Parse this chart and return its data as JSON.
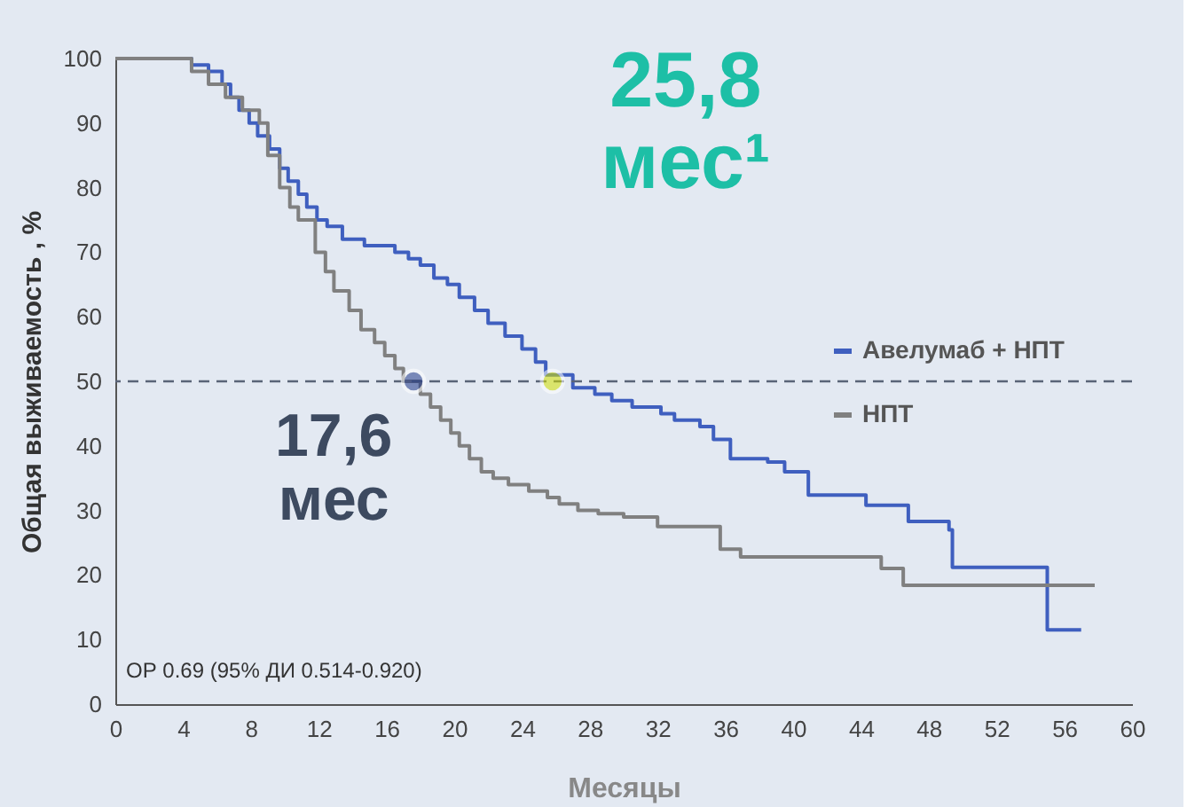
{
  "chart_data": {
    "type": "step",
    "xlabel": "Месяцы",
    "ylabel": "Общая выживаемость , %",
    "xlim": [
      0,
      60
    ],
    "xticks": [
      0,
      4,
      8,
      12,
      16,
      20,
      24,
      28,
      32,
      36,
      40,
      44,
      48,
      52,
      56,
      60
    ],
    "ylim": [
      0,
      100
    ],
    "yticks": [
      0,
      10,
      20,
      30,
      40,
      50,
      60,
      70,
      80,
      90,
      100
    ],
    "grid": false,
    "legend": "right",
    "marker": "none",
    "line_style": "solid",
    "series": [
      {
        "name": "Авелумаб + НПТ",
        "color": "#3f5fbf",
        "x": [
          0,
          4.5,
          5.5,
          6.3,
          6.8,
          7.3,
          7.9,
          8.4,
          9.1,
          9.7,
          10.2,
          10.8,
          11.3,
          11.9,
          12.5,
          13.4,
          14.7,
          16.5,
          17.3,
          18,
          18.8,
          19.6,
          20.3,
          21.2,
          22,
          23,
          24,
          24.8,
          25.4,
          27,
          28.3,
          29.3,
          30.5,
          32.2,
          33,
          34.5,
          35.3,
          36.3,
          38.5,
          39.5,
          40.9,
          44.3,
          46.8,
          49.2,
          49.4,
          55,
          57
        ],
        "values": [
          100,
          99,
          98,
          96,
          94,
          92,
          90,
          88,
          86,
          83,
          81,
          79,
          77,
          75,
          74,
          72,
          71,
          70,
          69,
          68,
          66,
          65,
          63,
          61,
          59,
          57,
          55,
          53,
          51,
          49,
          48,
          47,
          46,
          45,
          44,
          43,
          41,
          38,
          37.5,
          36,
          32.4,
          30.8,
          28.3,
          27,
          21.2,
          11.5,
          11.5
        ]
      },
      {
        "name": "НПТ",
        "color": "#808080",
        "x": [
          0,
          4.5,
          5.5,
          6.5,
          7.5,
          8.5,
          9,
          9.7,
          10.3,
          10.8,
          11.8,
          12.4,
          12.9,
          13.8,
          14.5,
          15.3,
          15.9,
          16.5,
          17,
          18,
          18.6,
          19.2,
          19.8,
          20.3,
          20.9,
          21.6,
          22.3,
          23.2,
          24.4,
          25.5,
          26.2,
          27.3,
          28.5,
          30,
          32,
          35.7,
          36.9,
          45.2,
          46.5,
          57.8
        ],
        "values": [
          100,
          98,
          96,
          94,
          92,
          90,
          85,
          80,
          77,
          75,
          70,
          67,
          64,
          61,
          58,
          56,
          54,
          52,
          50,
          48,
          46,
          44,
          42,
          40,
          38,
          36,
          35,
          34,
          33,
          32,
          31,
          30,
          29.5,
          29,
          27.5,
          24,
          22.8,
          21,
          18.4,
          18.4
        ]
      }
    ],
    "ref_lines": [
      {
        "axis": "y",
        "value": 50,
        "line_style": "dashed",
        "color": "#5a6478"
      }
    ],
    "annotations": [
      {
        "text": "17,6\nмес",
        "x": 17.6,
        "y": 50
      },
      {
        "text": "25,8\nмес¹",
        "x": 25.8,
        "y": 50
      },
      "ОР 0.69 (95% ДИ 0.514-0.920)"
    ]
  }
}
